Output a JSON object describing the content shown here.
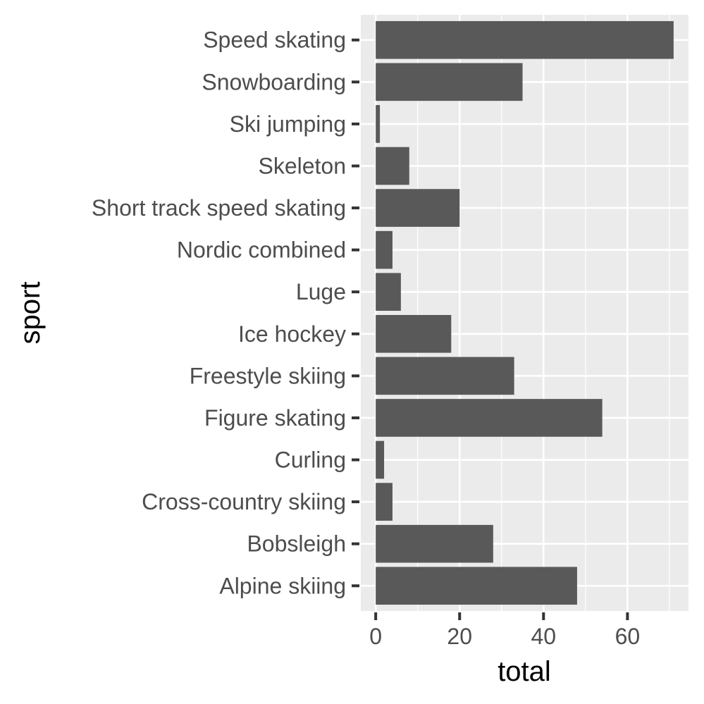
{
  "chart_data": {
    "type": "bar",
    "orientation": "horizontal",
    "title": "",
    "xlabel": "total",
    "ylabel": "sport",
    "categories": [
      "Alpine skiing",
      "Bobsleigh",
      "Cross-country skiing",
      "Curling",
      "Figure skating",
      "Freestyle skiing",
      "Ice hockey",
      "Luge",
      "Nordic combined",
      "Short track speed skating",
      "Skeleton",
      "Ski jumping",
      "Snowboarding",
      "Speed skating"
    ],
    "values": [
      48,
      28,
      4,
      2,
      54,
      33,
      18,
      6,
      4,
      20,
      8,
      1,
      35,
      71
    ],
    "xlim": [
      -3.55,
      74.55
    ],
    "xticks": [
      0,
      20,
      40,
      60
    ],
    "grid": true,
    "legend": "none",
    "colors": {
      "bar": "#595959",
      "panel": "#EBEBEB",
      "grid": "#FFFFFF",
      "tick_text": "#4D4D4D",
      "tick_mark": "#333333"
    }
  }
}
